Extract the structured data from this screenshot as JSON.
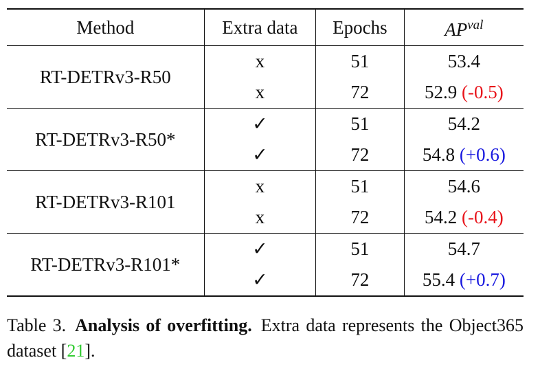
{
  "table": {
    "header": {
      "method": "Method",
      "extra": "Extra data",
      "epochs": "Epochs",
      "ap": {
        "base": "AP",
        "sup": "val"
      }
    },
    "groups": [
      {
        "method": "RT-DETRv3-R50",
        "rows": [
          {
            "extra": "x",
            "epochs": 51,
            "ap": 53.4
          },
          {
            "extra": "x",
            "epochs": 72,
            "ap": 52.9,
            "delta": {
              "text": "(-0.5)",
              "color": "#e8141b"
            }
          }
        ]
      },
      {
        "method": "RT-DETRv3-R50*",
        "rows": [
          {
            "extra": "✓",
            "epochs": 51,
            "ap": 54.2
          },
          {
            "extra": "✓",
            "epochs": 72,
            "ap": 54.8,
            "delta": {
              "text": "(+0.6)",
              "color": "#1a1adf"
            }
          }
        ]
      },
      {
        "method": "RT-DETRv3-R101",
        "rows": [
          {
            "extra": "x",
            "epochs": 51,
            "ap": 54.6
          },
          {
            "extra": "x",
            "epochs": 72,
            "ap": 54.2,
            "delta": {
              "text": "(-0.4)",
              "color": "#e8141b"
            }
          }
        ]
      },
      {
        "method": "RT-DETRv3-R101*",
        "rows": [
          {
            "extra": "✓",
            "epochs": 51,
            "ap": 54.7
          },
          {
            "extra": "✓",
            "epochs": 72,
            "ap": 55.4,
            "delta": {
              "text": "(+0.7)",
              "color": "#1a1adf"
            }
          }
        ]
      }
    ]
  },
  "caption": {
    "label": "Table 3.",
    "title": "Analysis of overfitting.",
    "text": "Extra data represents the Object365 dataset [",
    "ref": "21",
    "ref_color": "#33cc33",
    "end": "]."
  }
}
